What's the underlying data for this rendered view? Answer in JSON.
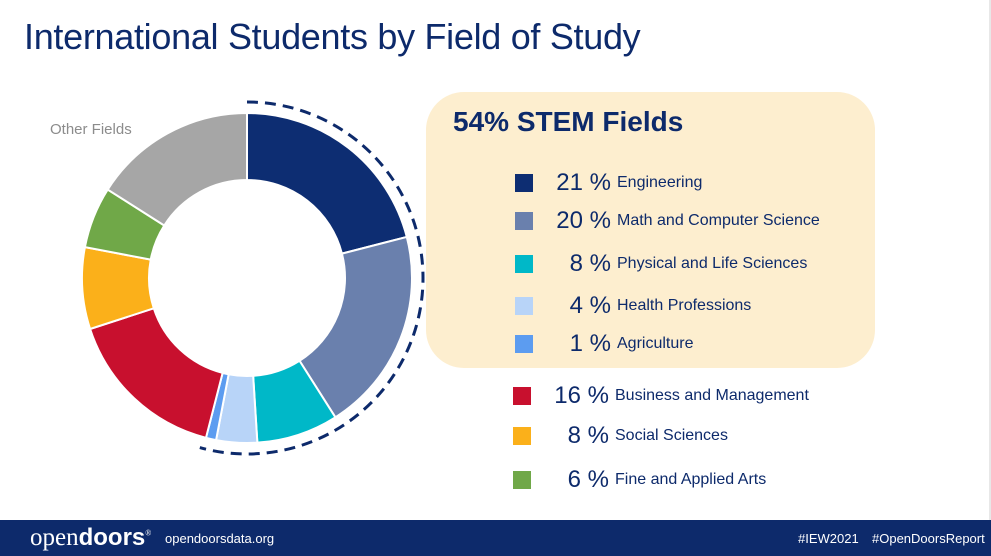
{
  "title": "International Students by Field of Study",
  "stem_box": {
    "title": "54% STEM Fields"
  },
  "footer": {
    "logo_regular": "open",
    "logo_bold": "doors",
    "logo_mark": "®",
    "url": "opendoorsdata.org",
    "tag1": "#IEW2021",
    "tag2": "#OpenDoorsReport"
  },
  "chart_data": {
    "type": "pie",
    "variant": "donut",
    "annotation": "Other Fields",
    "stem_group_marker": "dashed arc around STEM slices",
    "slices": [
      {
        "label": "Engineering",
        "value": 21,
        "pct_text": "21 %",
        "color": "#0d2d72",
        "stem": true
      },
      {
        "label": "Math and Computer Science",
        "value": 20,
        "pct_text": "20 %",
        "color": "#6a80ad",
        "stem": true
      },
      {
        "label": "Physical and Life Sciences",
        "value": 8,
        "pct_text": "8 %",
        "color": "#00b8c8",
        "stem": true
      },
      {
        "label": "Health Professions",
        "value": 4,
        "pct_text": "4 %",
        "color": "#b8d4f8",
        "stem": true
      },
      {
        "label": "Agriculture",
        "value": 1,
        "pct_text": "1 %",
        "color": "#5c9cf0",
        "stem": true
      },
      {
        "label": "Business and Management",
        "value": 16,
        "pct_text": "16 %",
        "color": "#c8102e",
        "stem": false
      },
      {
        "label": "Social Sciences",
        "value": 8,
        "pct_text": "8 %",
        "color": "#fbb01a",
        "stem": false
      },
      {
        "label": "Fine and Applied Arts",
        "value": 6,
        "pct_text": "6 %",
        "color": "#70a848",
        "stem": false
      },
      {
        "label": "Other Fields",
        "value": 16,
        "color": "#a6a6a6",
        "stem": false,
        "in_legend": false
      }
    ]
  }
}
